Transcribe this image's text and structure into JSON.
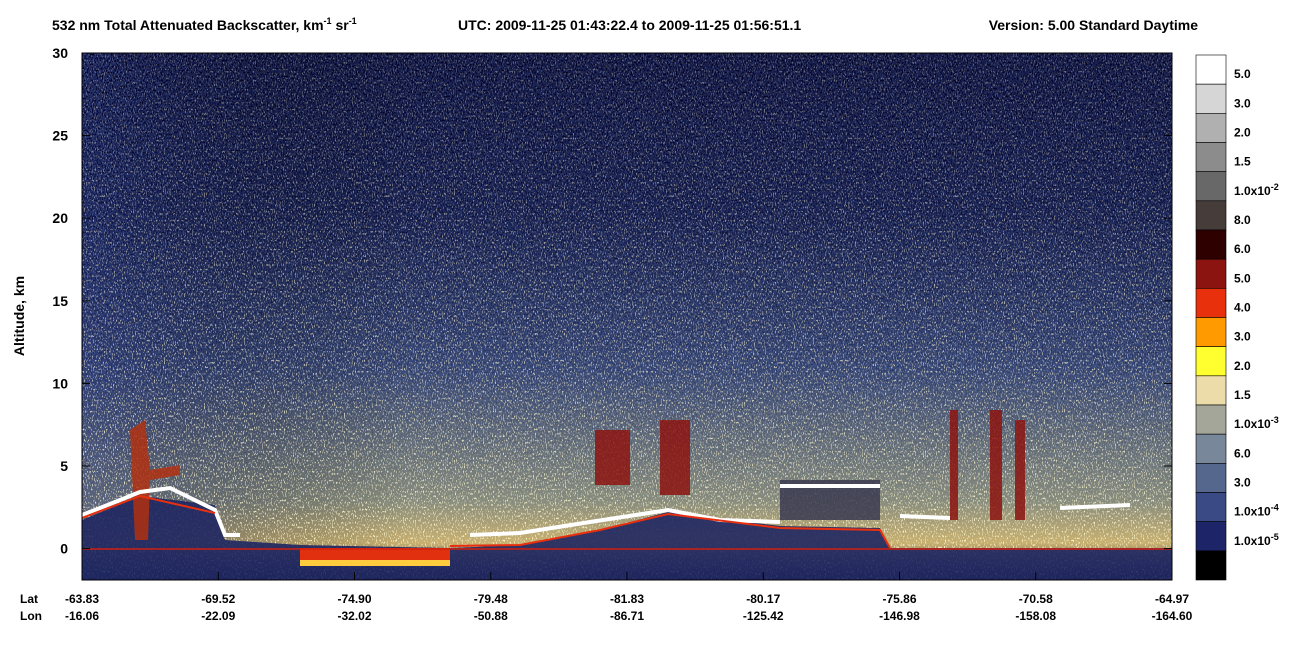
{
  "chart_data": {
    "type": "heatmap",
    "title_parts": [
      {
        "text": "532 nm Total Attenuated Backscatter, km",
        "sup": "-1"
      },
      {
        "text": " sr",
        "sup": "-1"
      }
    ],
    "time_range": "UTC:  2009-11-25 01:43:22.4  to  2009-11-25 01:56:51.1",
    "version": "Version: 5.00  Standard  Daytime",
    "y_label": "Altitude, km",
    "ylim": [
      -1.9,
      30
    ],
    "yticks": [
      0,
      5,
      10,
      15,
      20,
      25,
      30
    ],
    "x_rows": [
      {
        "name": "Lat",
        "labels": [
          "-63.83",
          "-69.52",
          "-74.90",
          "-79.48",
          "-81.83",
          "-80.17",
          "-75.86",
          "-70.58",
          "-64.97"
        ]
      },
      {
        "name": "Lon",
        "labels": [
          "-16.06",
          "-22.09",
          "-32.02",
          "-50.88",
          "-86.71",
          "-125.42",
          "-146.98",
          "-158.08",
          "-164.60"
        ]
      }
    ],
    "colorbar": {
      "colors": [
        "#ffffff",
        "#d6d6d6",
        "#b0b0b0",
        "#8c8c8c",
        "#686868",
        "#463c3a",
        "#2e0000",
        "#8c1410",
        "#e8300c",
        "#ff9a00",
        "#ffff30",
        "#ecdcaa",
        "#a4a69a",
        "#78889a",
        "#55678c",
        "#3a4a84",
        "#1e2468",
        "#000000"
      ],
      "labels": [
        {
          "text": "5.0"
        },
        {
          "text": "3.0"
        },
        {
          "text": "2.0"
        },
        {
          "text": "1.5"
        },
        {
          "text": "1.0x10",
          "sup": "-2"
        },
        {
          "text": "8.0"
        },
        {
          "text": "6.0"
        },
        {
          "text": "5.0"
        },
        {
          "text": "4.0"
        },
        {
          "text": "3.0"
        },
        {
          "text": "2.0"
        },
        {
          "text": "1.5"
        },
        {
          "text": "1.0x10",
          "sup": "-3"
        },
        {
          "text": "6.0"
        },
        {
          "text": "3.0"
        },
        {
          "text": "1.0x10",
          "sup": "-4"
        },
        {
          "text": "1.0x10",
          "sup": "-5"
        }
      ]
    }
  }
}
